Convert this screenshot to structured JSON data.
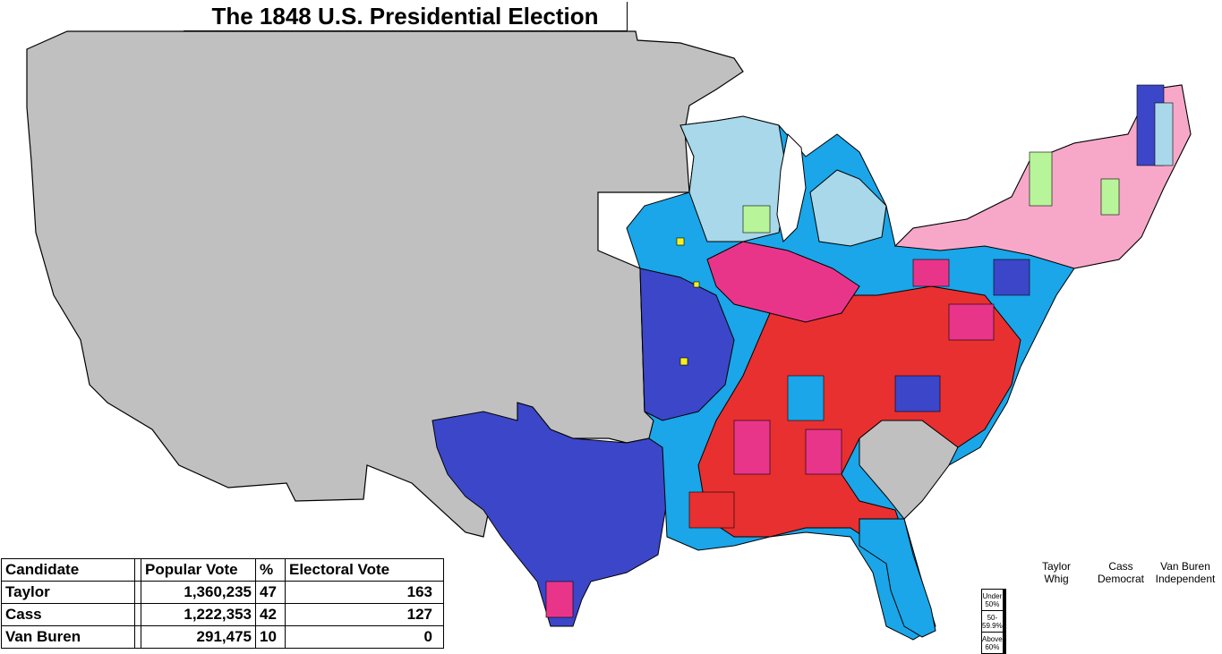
{
  "title": "The 1848 U.S. Presidential Election",
  "results_table": {
    "headers": {
      "candidate": "Candidate",
      "popular_vote": "Popular Vote",
      "percent": "%",
      "electoral_vote": "Electoral Vote"
    },
    "rows": [
      {
        "candidate": "Taylor",
        "popular_vote": "1,360,235",
        "percent": "47",
        "electoral_vote": "163"
      },
      {
        "candidate": "Cass",
        "popular_vote": "1,222,353",
        "percent": "42",
        "electoral_vote": "127"
      },
      {
        "candidate": "Van Buren",
        "popular_vote": "291,475",
        "percent": "10",
        "electoral_vote": "0"
      }
    ]
  },
  "legend": {
    "columns": [
      {
        "line1": "Taylor",
        "line2": "Whig"
      },
      {
        "line1": "Cass",
        "line2": "Democrat"
      },
      {
        "line1": "Van Buren",
        "line2": "Independent"
      }
    ],
    "levels": [
      "Under 50%",
      "50-59.9%",
      "Above 60%"
    ],
    "colors": [
      [
        "#f7a8c8",
        "#a8d8ea",
        "#b8f59a"
      ],
      [
        "#e8358a",
        "#1aa6e8",
        "#a0f050"
      ],
      [
        "#e83030",
        "#3c46c8",
        "#22b04a"
      ]
    ]
  },
  "map_colors": {
    "territory": "#c0c0c0",
    "whig_under50": "#f7a8c8",
    "whig_50": "#e8358a",
    "whig_60": "#e83030",
    "dem_under50": "#a8d8ea",
    "dem_50": "#1aa6e8",
    "dem_60": "#3c46c8",
    "fs_under50": "#b8f59a",
    "fs_50": "#a0f050",
    "other": "#f5f020"
  }
}
